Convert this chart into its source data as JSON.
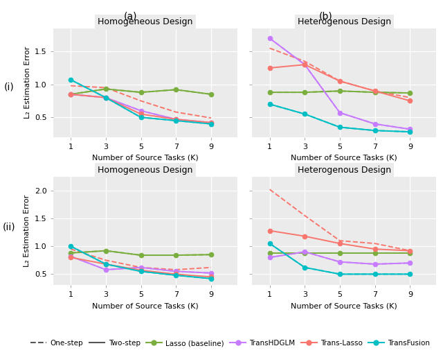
{
  "x": [
    1,
    3,
    5,
    7,
    9
  ],
  "panels": {
    "i_a": {
      "title": "Homogeneous Design",
      "lasso_two": [
        0.85,
        0.93,
        0.88,
        0.92,
        0.85
      ],
      "lasso_one": [
        0.85,
        0.93,
        0.88,
        0.92,
        0.85
      ],
      "transhdglm_two": [
        0.85,
        0.8,
        0.6,
        0.47,
        0.42
      ],
      "transhdglm_one": [
        0.85,
        0.8,
        0.6,
        0.47,
        0.42
      ],
      "translasso_two": [
        0.85,
        0.8,
        0.55,
        0.47,
        0.42
      ],
      "translasso_one": [
        0.98,
        0.95,
        0.75,
        0.58,
        0.49
      ],
      "transfusion_two": [
        1.07,
        0.8,
        0.5,
        0.45,
        0.4
      ],
      "transfusion_one": [
        1.07,
        0.8,
        0.5,
        0.45,
        0.4
      ],
      "ylim": [
        0.2,
        1.85
      ],
      "yticks": [
        0.5,
        1.0,
        1.5
      ]
    },
    "i_b": {
      "title": "Heterogenous Design",
      "lasso_two": [
        0.88,
        0.88,
        0.9,
        0.88,
        0.87
      ],
      "lasso_one": [
        0.88,
        0.88,
        0.9,
        0.88,
        0.87
      ],
      "transhdglm_two": [
        1.7,
        1.3,
        0.57,
        0.4,
        0.32
      ],
      "transhdglm_one": [
        1.7,
        1.3,
        0.57,
        0.4,
        0.32
      ],
      "translasso_two": [
        1.25,
        1.3,
        1.05,
        0.9,
        0.75
      ],
      "translasso_one": [
        1.55,
        1.35,
        1.05,
        0.9,
        0.8
      ],
      "transfusion_two": [
        0.7,
        0.55,
        0.35,
        0.3,
        0.28
      ],
      "transfusion_one": [
        0.7,
        0.55,
        0.35,
        0.3,
        0.28
      ],
      "ylim": [
        0.2,
        1.85
      ],
      "yticks": [
        0.5,
        1.0,
        1.5
      ]
    },
    "ii_a": {
      "title": "Homogeneous Design",
      "lasso_two": [
        0.88,
        0.92,
        0.84,
        0.84,
        0.85
      ],
      "lasso_one": [
        0.88,
        0.92,
        0.84,
        0.84,
        0.85
      ],
      "transhdglm_two": [
        0.82,
        0.58,
        0.62,
        0.55,
        0.52
      ],
      "transhdglm_one": [
        0.82,
        0.58,
        0.62,
        0.55,
        0.52
      ],
      "translasso_two": [
        0.8,
        0.68,
        0.57,
        0.5,
        0.45
      ],
      "translasso_one": [
        0.95,
        0.75,
        0.62,
        0.58,
        0.62
      ],
      "transfusion_two": [
        1.0,
        0.68,
        0.55,
        0.48,
        0.42
      ],
      "transfusion_one": [
        1.0,
        0.68,
        0.55,
        0.48,
        0.42
      ],
      "ylim": [
        0.3,
        2.25
      ],
      "yticks": [
        0.5,
        1.0,
        1.5,
        2.0
      ]
    },
    "ii_b": {
      "title": "Heterogenous Design",
      "lasso_two": [
        0.88,
        0.88,
        0.88,
        0.88,
        0.88
      ],
      "lasso_one": [
        0.88,
        0.88,
        0.88,
        0.88,
        0.88
      ],
      "transhdglm_two": [
        0.8,
        0.9,
        0.72,
        0.68,
        0.7
      ],
      "transhdglm_one": [
        0.8,
        0.9,
        0.72,
        0.68,
        0.7
      ],
      "translasso_two": [
        1.28,
        1.18,
        1.05,
        0.95,
        0.92
      ],
      "translasso_one": [
        2.02,
        1.55,
        1.1,
        1.05,
        0.92
      ],
      "transfusion_two": [
        1.05,
        0.62,
        0.5,
        0.5,
        0.5
      ],
      "transfusion_one": [
        1.05,
        0.62,
        0.5,
        0.5,
        0.5
      ],
      "ylim": [
        0.3,
        2.25
      ],
      "yticks": [
        0.5,
        1.0,
        1.5,
        2.0
      ]
    }
  },
  "colors": {
    "lasso": "#7AAE3E",
    "transhdglm": "#C77CFF",
    "translasso": "#F8766D",
    "transfusion": "#00BFC4"
  },
  "row_labels": [
    "(i)",
    "(ii)"
  ],
  "col_labels": [
    "(a)",
    "(b)"
  ],
  "xlabel": "Number of Source Tasks (K)",
  "ylabel": "L₂ Estimation Error",
  "panel_bg": "#EBEBEB",
  "fig_bg": "#FFFFFF",
  "title_fontsize": 9,
  "label_fontsize": 8,
  "legend_fontsize": 8
}
